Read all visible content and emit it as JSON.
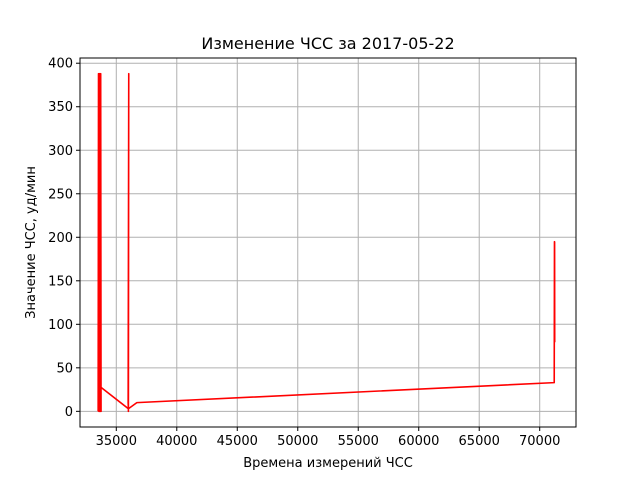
{
  "chart_data": {
    "type": "line",
    "title": "Изменение ЧСС за 2017-05-22",
    "xlabel": "Времена измерений ЧСС",
    "ylabel": "Значение ЧСС, уд/мин",
    "xlim": [
      32000,
      73000
    ],
    "ylim": [
      -18,
      406
    ],
    "xticks": [
      35000,
      40000,
      45000,
      50000,
      55000,
      60000,
      65000,
      70000
    ],
    "yticks": [
      0,
      50,
      100,
      150,
      200,
      250,
      300,
      350,
      400
    ],
    "grid": true,
    "legend": "none",
    "colors": {
      "series": "#ff0000"
    },
    "series": [
      {
        "x": [
          33500,
          33530,
          33560,
          33590,
          33620,
          33650,
          33680,
          33710,
          33740,
          33700,
          36000,
          36030,
          36000,
          36030,
          35980,
          36000,
          36700,
          71200,
          71220,
          71240,
          71230
        ],
        "y": [
          0,
          388,
          0,
          388,
          0,
          388,
          0,
          388,
          0,
          28,
          3,
          388,
          0,
          388,
          10,
          3,
          10,
          33,
          195,
          80,
          195
        ]
      }
    ]
  }
}
